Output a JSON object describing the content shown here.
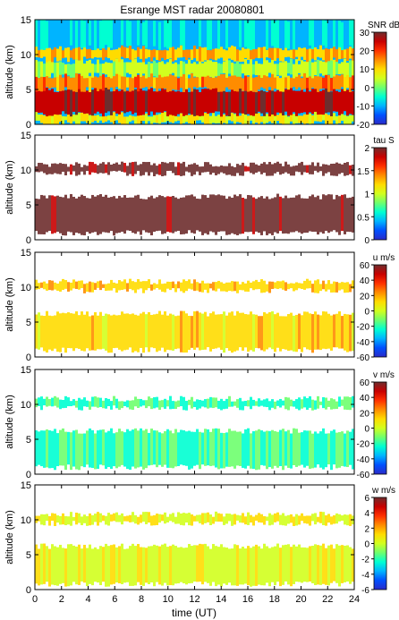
{
  "title": "Esrange MST radar 20080801",
  "x_axis": {
    "label": "time (UT)",
    "range": [
      0,
      24
    ],
    "ticks": [
      "0",
      "2",
      "4",
      "6",
      "8",
      "10",
      "12",
      "14",
      "16",
      "18",
      "20",
      "22",
      "24"
    ]
  },
  "colormap": [
    "#2b2bc8",
    "#0050ff",
    "#00b4ff",
    "#00ffd2",
    "#6eff6e",
    "#d2ff1e",
    "#ffdc00",
    "#ff8c00",
    "#ff3000",
    "#c80000",
    "#6e2d2d"
  ],
  "chart_data": [
    {
      "type": "heatmap",
      "quantity": "SNR",
      "colorbar_label": "SNR dB",
      "colorbar_range": [
        -20,
        30
      ],
      "colorbar_ticks": [
        "30",
        "20",
        "10",
        "0",
        "-10",
        "-20"
      ],
      "ylabel": "altitude (km)",
      "ylim": [
        0,
        15
      ],
      "yticks": [
        "0",
        "5",
        "10",
        "15"
      ],
      "x": [
        0,
        24
      ],
      "layers": [
        {
          "from_km": 0.2,
          "to_km": 1.5,
          "value_db": 8
        },
        {
          "from_km": 1.5,
          "to_km": 5,
          "value_db": 26
        },
        {
          "from_km": 5,
          "to_km": 7,
          "value_db": 15
        },
        {
          "from_km": 7,
          "to_km": 9,
          "value_db": 4
        },
        {
          "from_km": 9.3,
          "to_km": 11,
          "value_db": 12
        },
        {
          "from_km": 11,
          "to_km": 15,
          "value_db": -8
        }
      ]
    },
    {
      "type": "heatmap",
      "quantity": "tau",
      "colorbar_label": "tau S",
      "colorbar_range": [
        0,
        2
      ],
      "colorbar_ticks": [
        "2",
        "1.5",
        "1",
        "0.5",
        "0"
      ],
      "ylabel": "altitude (km)",
      "ylim": [
        0,
        15
      ],
      "yticks": [
        "0",
        "5",
        "10",
        "15"
      ],
      "x": [
        0,
        24
      ],
      "layers": [
        {
          "from_km": 1.0,
          "to_km": 6.2,
          "value": 2.0
        },
        {
          "from_km": 9.5,
          "to_km": 10.8,
          "value": 2.0
        }
      ]
    },
    {
      "type": "heatmap",
      "quantity": "u",
      "colorbar_label": "u m/s",
      "colorbar_range": [
        -60,
        60
      ],
      "colorbar_ticks": [
        "60",
        "40",
        "20",
        "0",
        "-20",
        "-40",
        "-60"
      ],
      "ylabel": "altitude (km)",
      "ylim": [
        0,
        15
      ],
      "yticks": [
        "0",
        "5",
        "10",
        "15"
      ],
      "x": [
        0,
        24
      ],
      "layers": [
        {
          "from_km": 1.0,
          "to_km": 6.2,
          "value_ms": 12
        },
        {
          "from_km": 9.5,
          "to_km": 10.8,
          "value_ms": 14
        }
      ]
    },
    {
      "type": "heatmap",
      "quantity": "v",
      "colorbar_label": "v m/s",
      "colorbar_range": [
        -60,
        60
      ],
      "colorbar_ticks": [
        "60",
        "40",
        "20",
        "0",
        "-20",
        "-40",
        "-60"
      ],
      "ylabel": "altitude (km)",
      "ylim": [
        0,
        15
      ],
      "yticks": [
        "0",
        "5",
        "10",
        "15"
      ],
      "x": [
        0,
        24
      ],
      "layers": [
        {
          "from_km": 1.0,
          "to_km": 6.2,
          "value_ms": -18
        },
        {
          "from_km": 9.5,
          "to_km": 10.8,
          "value_ms": -20
        }
      ]
    },
    {
      "type": "heatmap",
      "quantity": "w",
      "colorbar_label": "w m/s",
      "colorbar_range": [
        -6,
        6
      ],
      "colorbar_ticks": [
        "6",
        "4",
        "2",
        "0",
        "-2",
        "-4",
        "-6"
      ],
      "ylabel": "altitude (km)",
      "ylim": [
        0,
        15
      ],
      "yticks": [
        "0",
        "5",
        "10",
        "15"
      ],
      "x": [
        0,
        24
      ],
      "layers": [
        {
          "from_km": 0.8,
          "to_km": 6.2,
          "value_ms": 0.3
        },
        {
          "from_km": 9.5,
          "to_km": 10.8,
          "value_ms": 0.5
        }
      ]
    }
  ]
}
